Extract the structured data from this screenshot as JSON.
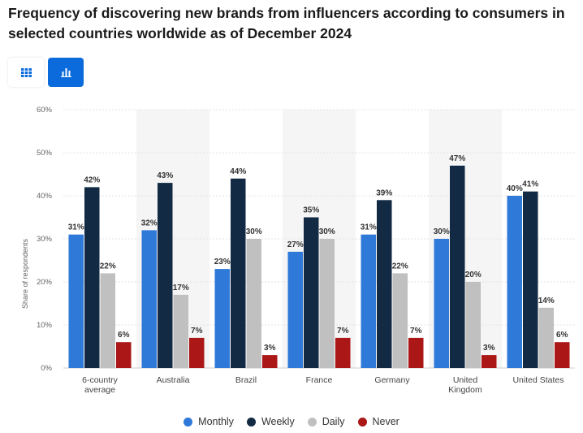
{
  "header": {
    "title": "Frequency of discovering new brands from influencers according to consumers in selected countries worldwide as of December 2024"
  },
  "toolbar": {
    "table_view_icon": "table-grid-icon",
    "chart_view_icon": "bar-chart-icon",
    "active_color": "#0b6bdc"
  },
  "chart_data": {
    "type": "bar",
    "title": "Frequency of discovering new brands from influencers according to consumers in selected countries worldwide as of December 2024",
    "xlabel": "",
    "ylabel": "Share of respondents",
    "ylim": [
      0,
      60
    ],
    "yticks": [
      "0%",
      "10%",
      "20%",
      "30%",
      "40%",
      "50%",
      "60%"
    ],
    "categories": [
      [
        "6-country",
        "average"
      ],
      [
        "Australia"
      ],
      [
        "Brazil"
      ],
      [
        "France"
      ],
      [
        "Germany"
      ],
      [
        "United",
        "Kingdom"
      ],
      [
        "United States"
      ]
    ],
    "series": [
      {
        "name": "Monthly",
        "color": "#2f79d9",
        "values": [
          31,
          32,
          23,
          27,
          31,
          30,
          40
        ]
      },
      {
        "name": "Weekly",
        "color": "#132a44",
        "values": [
          42,
          43,
          44,
          35,
          39,
          47,
          41
        ]
      },
      {
        "name": "Daily",
        "color": "#c0c0c0",
        "values": [
          22,
          17,
          30,
          30,
          22,
          20,
          14
        ]
      },
      {
        "name": "Never",
        "color": "#ab1617",
        "values": [
          6,
          7,
          3,
          7,
          7,
          3,
          6
        ]
      }
    ],
    "grid": true,
    "legend_position": "bottom"
  }
}
